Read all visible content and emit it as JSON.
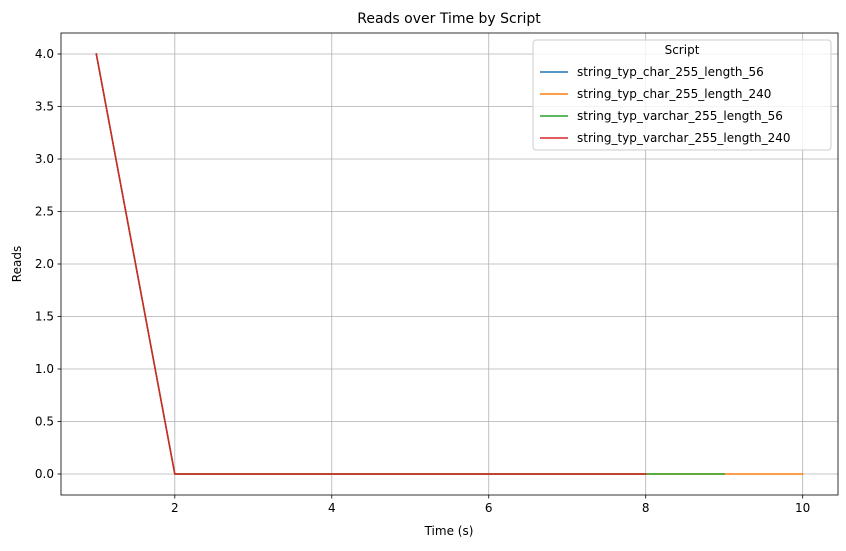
{
  "chart_data": {
    "type": "line",
    "title": "Reads over Time by Script",
    "xlabel": "Time (s)",
    "ylabel": "Reads",
    "xlim": [
      0.55,
      10.45
    ],
    "ylim": [
      -0.2,
      4.2
    ],
    "xticks": [
      2,
      4,
      6,
      8,
      10
    ],
    "yticks": [
      0.0,
      0.5,
      1.0,
      1.5,
      2.0,
      2.5,
      3.0,
      3.5,
      4.0
    ],
    "xtick_labels": [
      "2",
      "4",
      "6",
      "8",
      "10"
    ],
    "ytick_labels": [
      "0.0",
      "0.5",
      "1.0",
      "1.5",
      "2.0",
      "2.5",
      "3.0",
      "3.5",
      "4.0"
    ],
    "grid": true,
    "legend": {
      "title": "Script",
      "placement": "top-right"
    },
    "series": [
      {
        "name": "string_typ_char_255_length_56",
        "color": "#1f77b4",
        "x": [
          1,
          2,
          3,
          4,
          5,
          6,
          7,
          8
        ],
        "y": [
          4,
          0,
          0,
          0,
          0,
          0,
          0,
          0
        ]
      },
      {
        "name": "string_typ_char_255_length_240",
        "color": "#ff7f0e",
        "x": [
          1,
          2,
          3,
          4,
          5,
          6,
          7,
          8,
          9,
          10
        ],
        "y": [
          4,
          0,
          0,
          0,
          0,
          0,
          0,
          0,
          0,
          0
        ]
      },
      {
        "name": "string_typ_varchar_255_length_56",
        "color": "#2ca02c",
        "x": [
          1,
          2,
          3,
          4,
          5,
          6,
          7,
          8,
          9
        ],
        "y": [
          4,
          0,
          0,
          0,
          0,
          0,
          0,
          0,
          0
        ]
      },
      {
        "name": "string_typ_varchar_255_length_240",
        "color": "#d62728",
        "x": [
          1,
          2,
          3,
          4,
          5,
          6,
          7,
          8
        ],
        "y": [
          4,
          0,
          0,
          0,
          0,
          0,
          0,
          0
        ]
      }
    ]
  }
}
